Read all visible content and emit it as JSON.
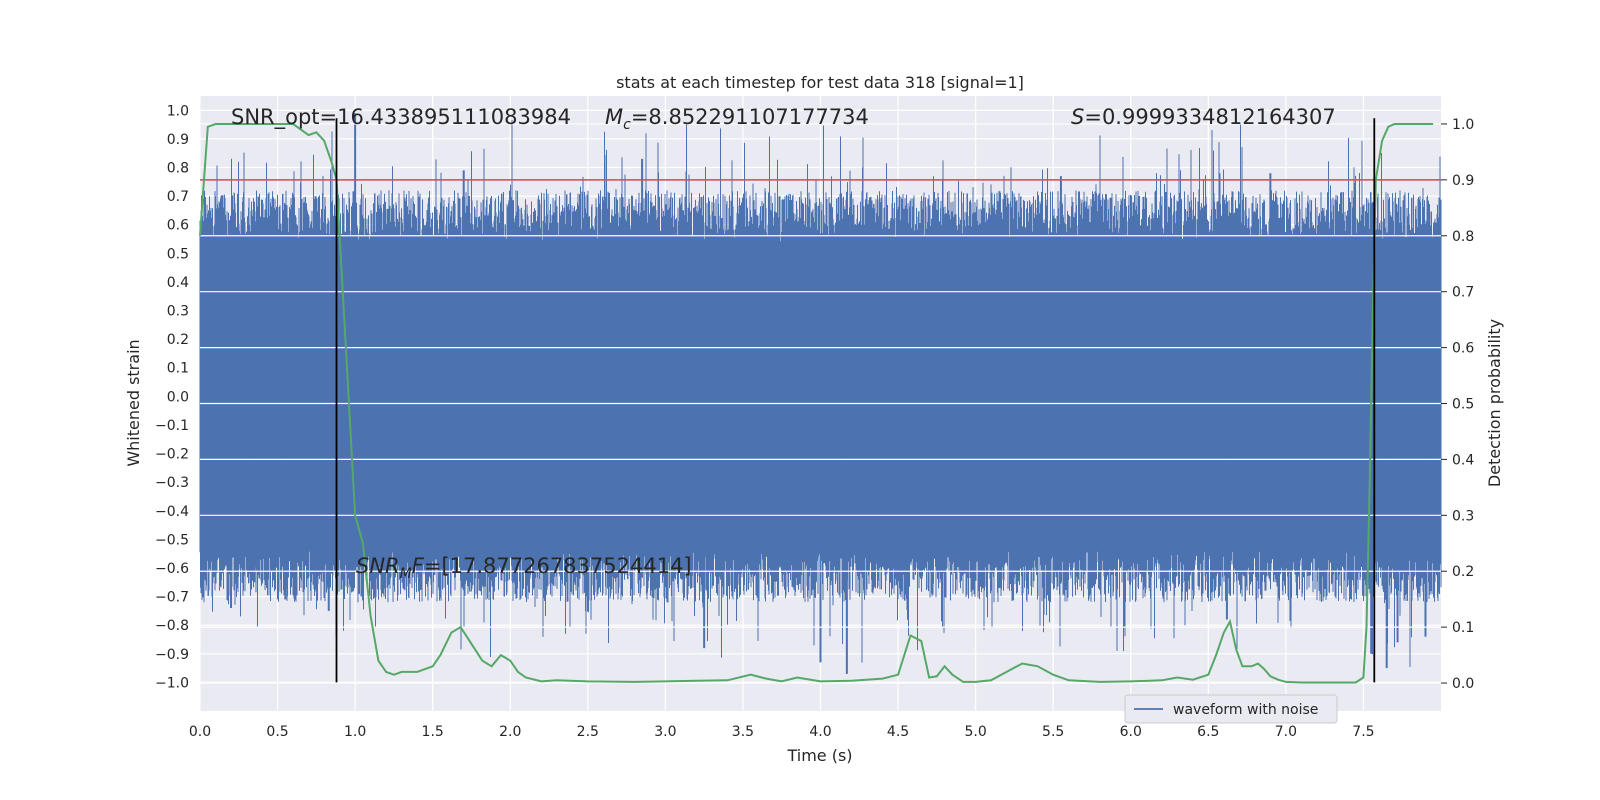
{
  "chart_data": {
    "type": "line",
    "title": "stats at each timestep for test data 318 [signal=1]",
    "xlabel": "Time (s)",
    "ylabel": "Whitened strain",
    "ylabel_right": "Detection probability",
    "xlim": [
      0.0,
      8.0
    ],
    "ylim": [
      -1.1,
      1.05
    ],
    "ylim_right": [
      -0.05,
      1.05
    ],
    "x_ticks": [
      "0.0",
      "0.5",
      "1.0",
      "1.5",
      "2.0",
      "2.5",
      "3.0",
      "3.5",
      "4.0",
      "4.5",
      "5.0",
      "5.5",
      "6.0",
      "6.5",
      "7.0",
      "7.5"
    ],
    "y_ticks": [
      "1.0",
      "0.9",
      "0.8",
      "0.7",
      "0.6",
      "0.5",
      "0.4",
      "0.3",
      "0.2",
      "0.1",
      "0.0",
      "−0.1",
      "−0.2",
      "−0.3",
      "−0.4",
      "−0.5",
      "−0.6",
      "−0.7",
      "−0.8",
      "−0.9",
      "−1.0"
    ],
    "y_ticks_right": [
      "1.0",
      "0.9",
      "0.8",
      "0.7",
      "0.6",
      "0.5",
      "0.4",
      "0.3",
      "0.2",
      "0.1",
      "0.0"
    ],
    "grid": true,
    "legend": {
      "label": "waveform with noise",
      "position": "lower-right"
    },
    "threshold": {
      "value": 0.9,
      "axis": "right",
      "color": "#c44e52"
    },
    "vertical_markers": [
      0.88,
      7.57
    ],
    "annotations": {
      "snr_opt": "SNR_opt=16.433895111083984",
      "mc_label": "M",
      "mc_sub": "c",
      "mc_value": "=8.852291107177734",
      "s_label": "S",
      "s_value": "=0.9999334812164307",
      "snr_mf_label": "SNR",
      "snr_mf_sub": "M",
      "snr_mf_f": "F",
      "snr_mf_value": "=[17.877267837524414]"
    },
    "series": [
      {
        "name": "detection probability",
        "axis": "right",
        "color": "#55a868",
        "x": [
          0.0,
          0.05,
          0.1,
          0.2,
          0.3,
          0.4,
          0.5,
          0.6,
          0.7,
          0.75,
          0.8,
          0.85,
          0.88,
          0.95,
          1.0,
          1.05,
          1.1,
          1.15,
          1.2,
          1.25,
          1.3,
          1.4,
          1.5,
          1.55,
          1.62,
          1.68,
          1.75,
          1.82,
          1.88,
          1.94,
          2.0,
          2.05,
          2.1,
          2.2,
          2.3,
          2.5,
          2.8,
          3.0,
          3.2,
          3.4,
          3.55,
          3.65,
          3.75,
          3.85,
          4.0,
          4.2,
          4.4,
          4.5,
          4.58,
          4.65,
          4.7,
          4.75,
          4.8,
          4.85,
          4.92,
          5.0,
          5.1,
          5.2,
          5.3,
          5.4,
          5.5,
          5.6,
          5.8,
          6.0,
          6.2,
          6.3,
          6.4,
          6.5,
          6.55,
          6.6,
          6.64,
          6.68,
          6.72,
          6.78,
          6.82,
          6.86,
          6.9,
          6.95,
          7.0,
          7.1,
          7.3,
          7.45,
          7.5,
          7.52,
          7.54,
          7.56,
          7.58,
          7.62,
          7.66,
          7.7,
          7.8,
          7.9,
          7.95
        ],
        "values": [
          0.8,
          0.995,
          1.0,
          1.0,
          1.0,
          1.0,
          1.0,
          1.0,
          0.98,
          0.985,
          0.97,
          0.93,
          0.9,
          0.55,
          0.3,
          0.25,
          0.12,
          0.04,
          0.02,
          0.015,
          0.02,
          0.02,
          0.03,
          0.05,
          0.09,
          0.1,
          0.07,
          0.04,
          0.03,
          0.05,
          0.04,
          0.02,
          0.01,
          0.003,
          0.005,
          0.003,
          0.002,
          0.003,
          0.004,
          0.005,
          0.015,
          0.008,
          0.003,
          0.01,
          0.003,
          0.004,
          0.008,
          0.015,
          0.085,
          0.075,
          0.01,
          0.012,
          0.03,
          0.015,
          0.002,
          0.002,
          0.005,
          0.02,
          0.035,
          0.03,
          0.015,
          0.005,
          0.002,
          0.003,
          0.005,
          0.01,
          0.006,
          0.015,
          0.05,
          0.09,
          0.11,
          0.06,
          0.03,
          0.03,
          0.035,
          0.025,
          0.012,
          0.006,
          0.002,
          0.001,
          0.001,
          0.001,
          0.01,
          0.1,
          0.35,
          0.65,
          0.9,
          0.97,
          0.995,
          1.0,
          1.0,
          1.0,
          1.0
        ]
      },
      {
        "name": "waveform with noise",
        "axis": "left",
        "color": "#4c72b0",
        "envelope": {
          "band": 0.42,
          "noise_mean": 0.12,
          "noise_spread": 0.18,
          "max": 1.0,
          "min": -0.97
        },
        "spikes": [
          {
            "x": 0.2,
            "v": -0.74
          },
          {
            "x": 0.35,
            "v": -0.65
          },
          {
            "x": 0.55,
            "v": -0.71
          },
          {
            "x": 0.83,
            "v": -0.75
          },
          {
            "x": 1.0,
            "v": 0.99
          },
          {
            "x": 1.7,
            "v": 0.79
          },
          {
            "x": 2.85,
            "v": 0.83
          },
          {
            "x": 3.25,
            "v": -0.88
          },
          {
            "x": 3.8,
            "v": 0.45
          },
          {
            "x": 4.0,
            "v": -0.93
          },
          {
            "x": 4.17,
            "v": -0.97
          },
          {
            "x": 5.55,
            "v": 0.77
          },
          {
            "x": 6.62,
            "v": -0.78
          },
          {
            "x": 6.9,
            "v": 0.78
          },
          {
            "x": 7.55,
            "v": -0.9
          },
          {
            "x": 7.65,
            "v": -0.95
          },
          {
            "x": 7.72,
            "v": -0.86
          },
          {
            "x": 7.9,
            "v": -0.84
          }
        ]
      }
    ]
  }
}
